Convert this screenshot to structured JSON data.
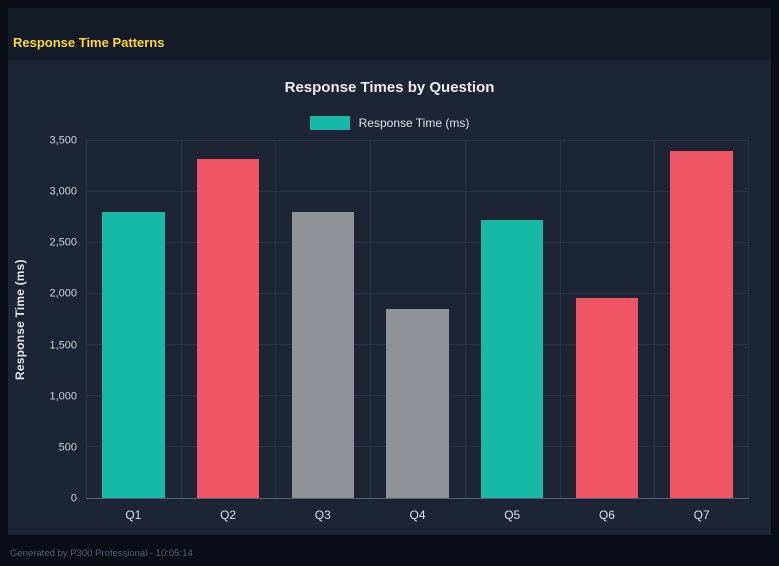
{
  "page": {
    "title": "Response Time Patterns",
    "footer": "Generated by P300 Professional - 10:05:14"
  },
  "colors": {
    "accent_yellow": "#fdd835",
    "teal": "#16b8a8",
    "red": "#ef5564",
    "gray": "#8f9296",
    "panel_bg": "#1d2534",
    "page_bg": "#141a28",
    "frame_bg": "#0a0d15",
    "grid": "#2a3245"
  },
  "chart_data": {
    "type": "bar",
    "title": "Response Times by Question",
    "legend": "Response Time (ms)",
    "legend_color": "#16b8a8",
    "legend_position": "top",
    "xlabel": "",
    "ylabel": "Response Time (ms)",
    "categories": [
      "Q1",
      "Q2",
      "Q3",
      "Q4",
      "Q5",
      "Q6",
      "Q7"
    ],
    "values": [
      2800,
      3320,
      2800,
      1850,
      2730,
      1960,
      3400
    ],
    "colors": [
      "#16b8a8",
      "#ef5564",
      "#8f9296",
      "#8f9296",
      "#16b8a8",
      "#ef5564",
      "#ef5564"
    ],
    "ylim": [
      0,
      3500
    ],
    "yticks": [
      0,
      500,
      1000,
      1500,
      2000,
      2500,
      3000,
      3500
    ],
    "ytick_labels": [
      "0",
      "500",
      "1,000",
      "1,500",
      "2,000",
      "2,500",
      "3,000",
      "3,500"
    ],
    "grid": true
  }
}
